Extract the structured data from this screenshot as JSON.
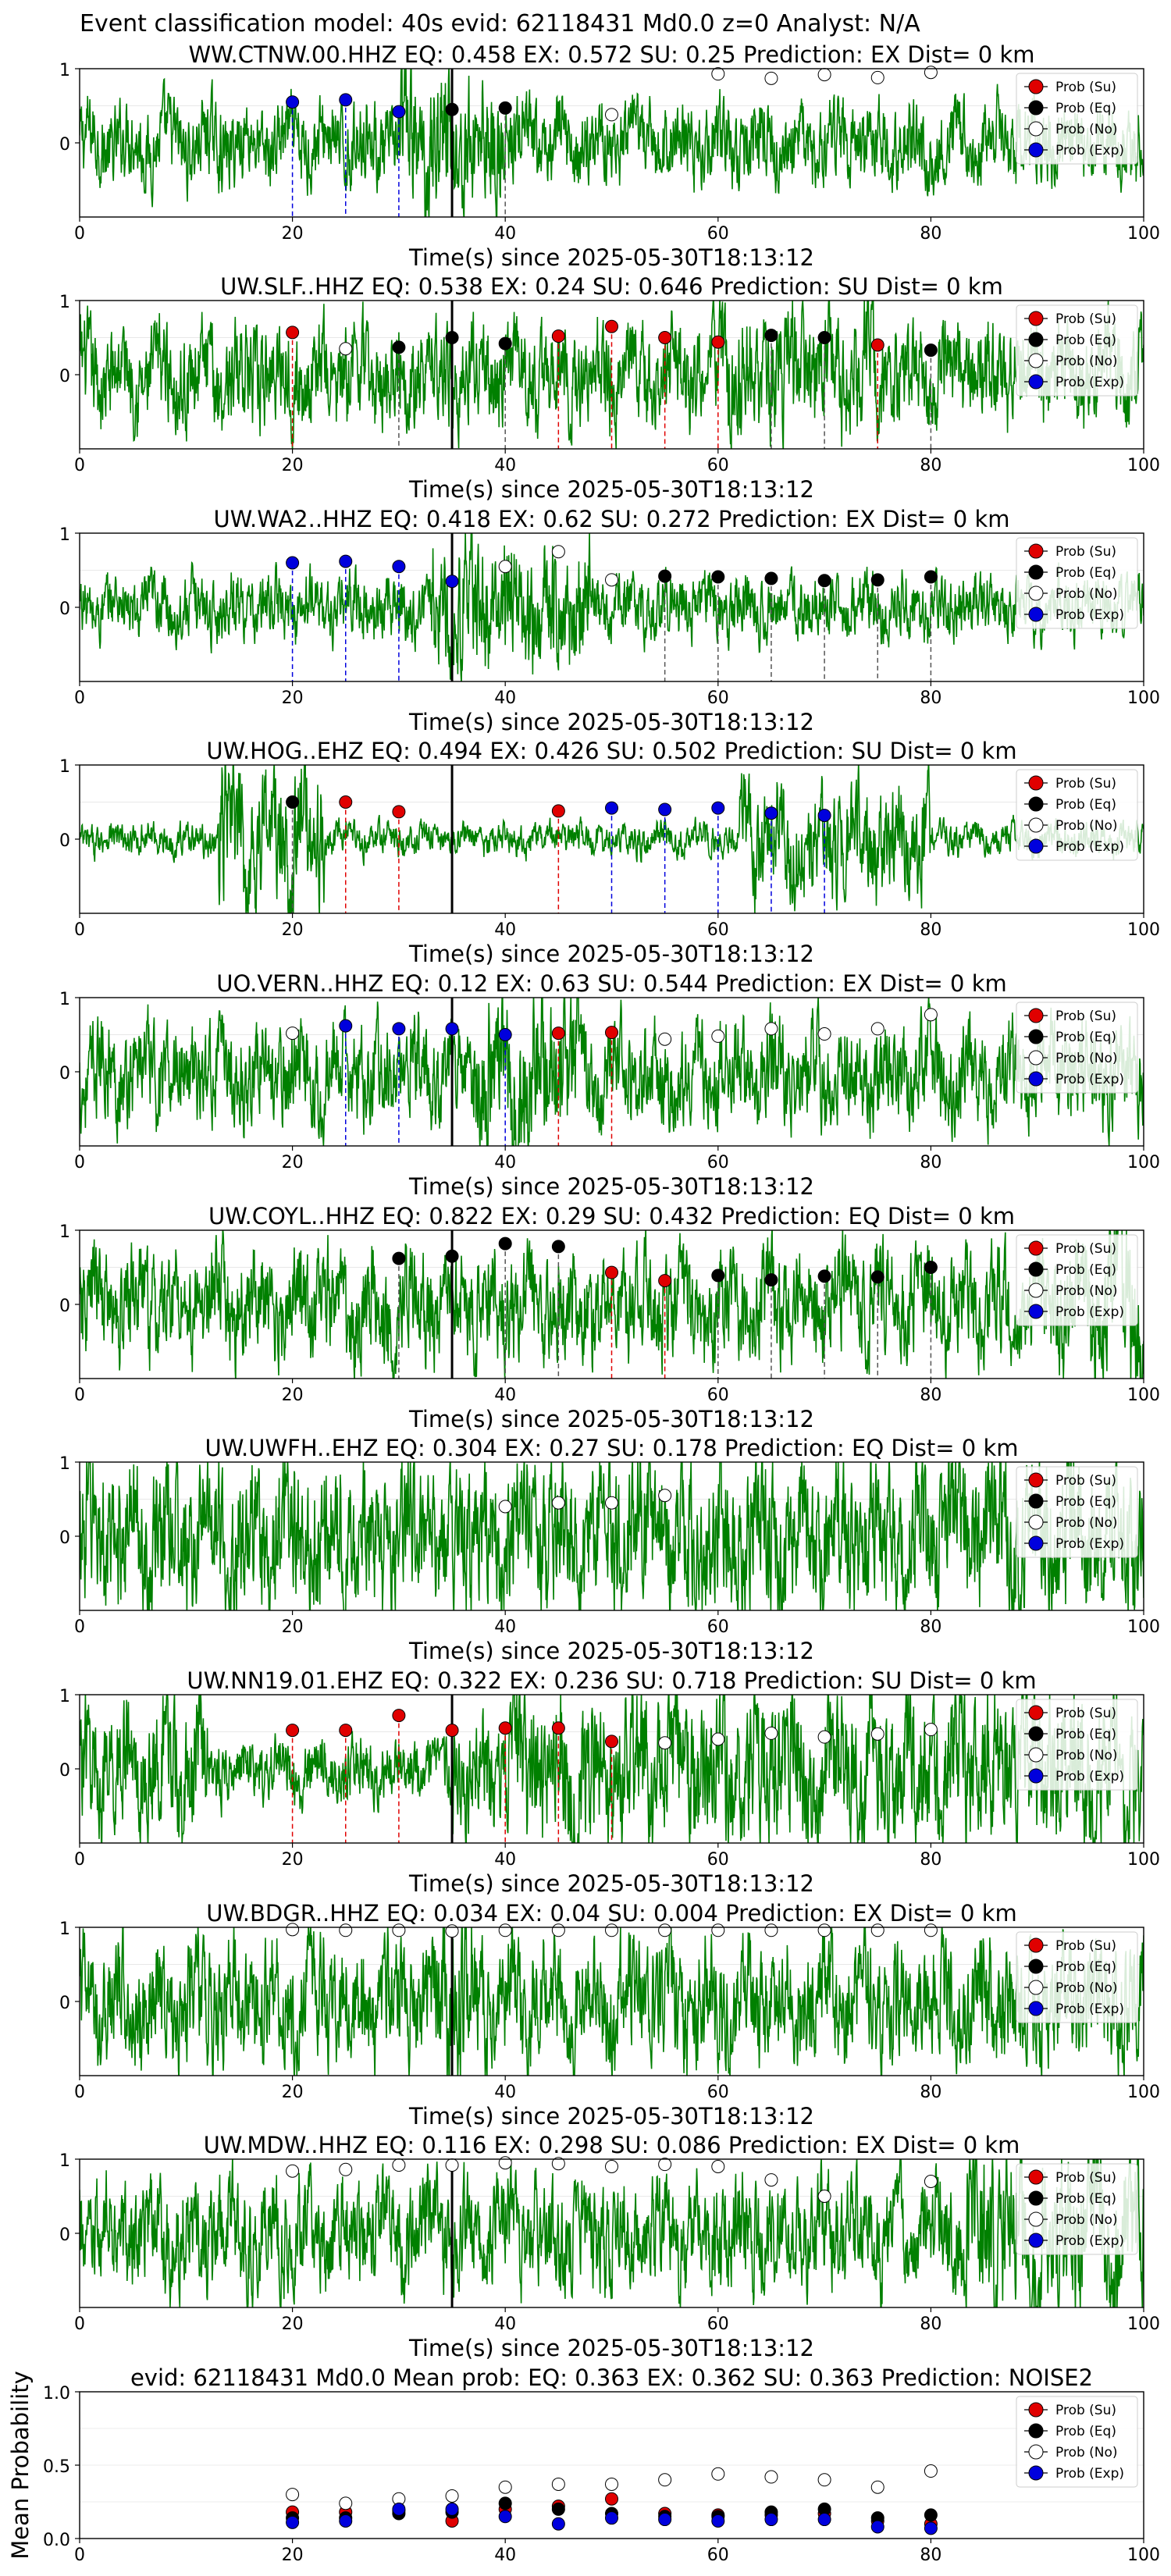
{
  "suptitle": "Event classification model: 40s evid: 62118431 Md0.0 z=0 Analyst: N/A",
  "colors": {
    "waveform": "#008000",
    "su": "#e00000",
    "eq": "#000000",
    "no": "#ffffff",
    "exp": "#0000dd",
    "vline_origin": "#000000"
  },
  "legend": [
    "Prob (Su)",
    "Prob (Eq)",
    "Prob (No)",
    "Prob (Exp)"
  ],
  "chart_data": [
    {
      "type": "line",
      "station": "WW.CTNW.00.HHZ",
      "title": "WW.CTNW.00.HHZ   EQ: 0.458  EX: 0.572  SU: 0.25   Prediction: EX    Dist= 0 km",
      "xlabel": "Time(s) since 2025-05-30T18:13:12",
      "xlim": [
        0,
        100
      ],
      "ylim": [
        -1,
        1
      ],
      "xticks": [
        "0",
        "20",
        "40",
        "60",
        "80",
        "100"
      ],
      "yticks": [
        "1",
        "0"
      ],
      "origin_line": 35,
      "points": [
        {
          "x": 20,
          "y": 0.55,
          "class": "exp"
        },
        {
          "x": 25,
          "y": 0.58,
          "class": "exp"
        },
        {
          "x": 30,
          "y": 0.42,
          "class": "exp"
        },
        {
          "x": 35,
          "y": 0.45,
          "class": "eq"
        },
        {
          "x": 40,
          "y": 0.47,
          "class": "eq"
        },
        {
          "x": 50,
          "y": 0.38,
          "class": "no"
        },
        {
          "x": 60,
          "y": 0.93,
          "class": "no"
        },
        {
          "x": 65,
          "y": 0.87,
          "class": "no"
        },
        {
          "x": 70,
          "y": 0.92,
          "class": "no"
        },
        {
          "x": 75,
          "y": 0.88,
          "class": "no"
        },
        {
          "x": 80,
          "y": 0.95,
          "class": "no"
        }
      ]
    },
    {
      "type": "line",
      "station": "UW.SLF..HHZ",
      "title": "UW.SLF..HHZ   EQ: 0.538  EX: 0.24  SU: 0.646   Prediction: SU    Dist= 0 km",
      "xlabel": "Time(s) since 2025-05-30T18:13:12",
      "xlim": [
        0,
        100
      ],
      "ylim": [
        -1,
        1
      ],
      "xticks": [
        "0",
        "20",
        "40",
        "60",
        "80",
        "100"
      ],
      "yticks": [
        "1",
        "0"
      ],
      "origin_line": 35,
      "points": [
        {
          "x": 20,
          "y": 0.57,
          "class": "su"
        },
        {
          "x": 25,
          "y": 0.35,
          "class": "no"
        },
        {
          "x": 30,
          "y": 0.37,
          "class": "eq"
        },
        {
          "x": 35,
          "y": 0.5,
          "class": "eq"
        },
        {
          "x": 40,
          "y": 0.42,
          "class": "eq"
        },
        {
          "x": 45,
          "y": 0.52,
          "class": "su"
        },
        {
          "x": 50,
          "y": 0.65,
          "class": "su"
        },
        {
          "x": 55,
          "y": 0.5,
          "class": "su"
        },
        {
          "x": 60,
          "y": 0.44,
          "class": "su"
        },
        {
          "x": 65,
          "y": 0.53,
          "class": "eq"
        },
        {
          "x": 70,
          "y": 0.5,
          "class": "eq"
        },
        {
          "x": 75,
          "y": 0.4,
          "class": "su"
        },
        {
          "x": 80,
          "y": 0.33,
          "class": "eq"
        }
      ]
    },
    {
      "type": "line",
      "station": "UW.WA2..HHZ",
      "title": "UW.WA2..HHZ   EQ: 0.418  EX: 0.62  SU: 0.272   Prediction: EX    Dist= 0 km",
      "xlabel": "Time(s) since 2025-05-30T18:13:12",
      "xlim": [
        0,
        100
      ],
      "ylim": [
        -1,
        1
      ],
      "xticks": [
        "0",
        "20",
        "40",
        "60",
        "80",
        "100"
      ],
      "yticks": [
        "1",
        "0"
      ],
      "origin_line": 35,
      "points": [
        {
          "x": 20,
          "y": 0.6,
          "class": "exp"
        },
        {
          "x": 25,
          "y": 0.62,
          "class": "exp"
        },
        {
          "x": 30,
          "y": 0.55,
          "class": "exp"
        },
        {
          "x": 35,
          "y": 0.35,
          "class": "exp"
        },
        {
          "x": 40,
          "y": 0.55,
          "class": "no"
        },
        {
          "x": 45,
          "y": 0.75,
          "class": "no"
        },
        {
          "x": 50,
          "y": 0.37,
          "class": "no"
        },
        {
          "x": 55,
          "y": 0.42,
          "class": "eq"
        },
        {
          "x": 60,
          "y": 0.41,
          "class": "eq"
        },
        {
          "x": 65,
          "y": 0.39,
          "class": "eq"
        },
        {
          "x": 70,
          "y": 0.36,
          "class": "eq"
        },
        {
          "x": 75,
          "y": 0.37,
          "class": "eq"
        },
        {
          "x": 80,
          "y": 0.41,
          "class": "eq"
        }
      ]
    },
    {
      "type": "line",
      "station": "UW.HOG..EHZ",
      "title": "UW.HOG..EHZ   EQ: 0.494  EX: 0.426  SU: 0.502   Prediction: SU    Dist= 0 km",
      "xlabel": "Time(s) since 2025-05-30T18:13:12",
      "xlim": [
        0,
        100
      ],
      "ylim": [
        -1,
        1
      ],
      "xticks": [
        "0",
        "20",
        "40",
        "60",
        "80",
        "100"
      ],
      "yticks": [
        "1",
        "0"
      ],
      "origin_line": 35,
      "points": [
        {
          "x": 20,
          "y": 0.5,
          "class": "eq"
        },
        {
          "x": 25,
          "y": 0.5,
          "class": "su"
        },
        {
          "x": 30,
          "y": 0.37,
          "class": "su"
        },
        {
          "x": 45,
          "y": 0.38,
          "class": "su"
        },
        {
          "x": 50,
          "y": 0.42,
          "class": "exp"
        },
        {
          "x": 55,
          "y": 0.4,
          "class": "exp"
        },
        {
          "x": 60,
          "y": 0.42,
          "class": "exp"
        },
        {
          "x": 65,
          "y": 0.35,
          "class": "exp"
        },
        {
          "x": 70,
          "y": 0.32,
          "class": "exp"
        }
      ]
    },
    {
      "type": "line",
      "station": "UO.VERN..HHZ",
      "title": "UO.VERN..HHZ   EQ: 0.12  EX: 0.63  SU: 0.544   Prediction: EX    Dist= 0 km",
      "xlabel": "Time(s) since 2025-05-30T18:13:12",
      "xlim": [
        0,
        100
      ],
      "ylim": [
        -1,
        1
      ],
      "xticks": [
        "0",
        "20",
        "40",
        "60",
        "80",
        "100"
      ],
      "yticks": [
        "1",
        "0"
      ],
      "origin_line": 35,
      "points": [
        {
          "x": 20,
          "y": 0.52,
          "class": "no"
        },
        {
          "x": 25,
          "y": 0.62,
          "class": "exp"
        },
        {
          "x": 30,
          "y": 0.58,
          "class": "exp"
        },
        {
          "x": 35,
          "y": 0.58,
          "class": "exp"
        },
        {
          "x": 40,
          "y": 0.5,
          "class": "exp"
        },
        {
          "x": 45,
          "y": 0.52,
          "class": "su"
        },
        {
          "x": 50,
          "y": 0.53,
          "class": "su"
        },
        {
          "x": 55,
          "y": 0.44,
          "class": "no"
        },
        {
          "x": 60,
          "y": 0.48,
          "class": "no"
        },
        {
          "x": 65,
          "y": 0.58,
          "class": "no"
        },
        {
          "x": 70,
          "y": 0.51,
          "class": "no"
        },
        {
          "x": 75,
          "y": 0.58,
          "class": "no"
        },
        {
          "x": 80,
          "y": 0.77,
          "class": "no"
        }
      ]
    },
    {
      "type": "line",
      "station": "UW.COYL..HHZ",
      "title": "UW.COYL..HHZ   EQ: 0.822  EX: 0.29  SU: 0.432   Prediction: EQ    Dist= 0 km",
      "xlabel": "Time(s) since 2025-05-30T18:13:12",
      "xlim": [
        0,
        100
      ],
      "ylim": [
        -1,
        1
      ],
      "xticks": [
        "0",
        "20",
        "40",
        "60",
        "80",
        "100"
      ],
      "yticks": [
        "1",
        "0"
      ],
      "origin_line": 35,
      "points": [
        {
          "x": 30,
          "y": 0.62,
          "class": "eq"
        },
        {
          "x": 35,
          "y": 0.65,
          "class": "eq"
        },
        {
          "x": 40,
          "y": 0.82,
          "class": "eq"
        },
        {
          "x": 45,
          "y": 0.78,
          "class": "eq"
        },
        {
          "x": 50,
          "y": 0.43,
          "class": "su"
        },
        {
          "x": 55,
          "y": 0.32,
          "class": "su"
        },
        {
          "x": 60,
          "y": 0.39,
          "class": "eq"
        },
        {
          "x": 65,
          "y": 0.33,
          "class": "eq"
        },
        {
          "x": 70,
          "y": 0.38,
          "class": "eq"
        },
        {
          "x": 75,
          "y": 0.37,
          "class": "eq"
        },
        {
          "x": 80,
          "y": 0.5,
          "class": "eq"
        }
      ]
    },
    {
      "type": "line",
      "station": "UW.UWFH..EHZ",
      "title": "UW.UWFH..EHZ   EQ: 0.304  EX: 0.27  SU: 0.178   Prediction: EQ    Dist= 0 km",
      "xlabel": "Time(s) since 2025-05-30T18:13:12",
      "xlim": [
        0,
        100
      ],
      "ylim": [
        -1,
        1
      ],
      "xticks": [
        "0",
        "20",
        "40",
        "60",
        "80",
        "100"
      ],
      "yticks": [
        "1",
        "0"
      ],
      "origin_line": null,
      "points": [
        {
          "x": 40,
          "y": 0.4,
          "class": "no"
        },
        {
          "x": 45,
          "y": 0.45,
          "class": "no"
        },
        {
          "x": 50,
          "y": 0.45,
          "class": "no"
        },
        {
          "x": 55,
          "y": 0.55,
          "class": "no"
        }
      ]
    },
    {
      "type": "line",
      "station": "UW.NN19.01.EHZ",
      "title": "UW.NN19.01.EHZ   EQ: 0.322  EX: 0.236  SU: 0.718   Prediction: SU    Dist= 0 km",
      "xlabel": "Time(s) since 2025-05-30T18:13:12",
      "xlim": [
        0,
        100
      ],
      "ylim": [
        -1,
        1
      ],
      "xticks": [
        "0",
        "20",
        "40",
        "60",
        "80",
        "100"
      ],
      "yticks": [
        "1",
        "0"
      ],
      "origin_line": 35,
      "points": [
        {
          "x": 20,
          "y": 0.52,
          "class": "su"
        },
        {
          "x": 25,
          "y": 0.52,
          "class": "su"
        },
        {
          "x": 30,
          "y": 0.72,
          "class": "su"
        },
        {
          "x": 35,
          "y": 0.52,
          "class": "su"
        },
        {
          "x": 40,
          "y": 0.55,
          "class": "su"
        },
        {
          "x": 45,
          "y": 0.55,
          "class": "su"
        },
        {
          "x": 50,
          "y": 0.37,
          "class": "su"
        },
        {
          "x": 55,
          "y": 0.35,
          "class": "no"
        },
        {
          "x": 60,
          "y": 0.4,
          "class": "no"
        },
        {
          "x": 65,
          "y": 0.48,
          "class": "no"
        },
        {
          "x": 70,
          "y": 0.43,
          "class": "no"
        },
        {
          "x": 75,
          "y": 0.47,
          "class": "no"
        },
        {
          "x": 80,
          "y": 0.53,
          "class": "no"
        }
      ]
    },
    {
      "type": "line",
      "station": "UW.BDGR..HHZ",
      "title": "UW.BDGR..HHZ   EQ: 0.034  EX: 0.04  SU: 0.004   Prediction: EX    Dist= 0 km",
      "xlabel": "Time(s) since 2025-05-30T18:13:12",
      "xlim": [
        0,
        100
      ],
      "ylim": [
        -1,
        1
      ],
      "xticks": [
        "0",
        "20",
        "40",
        "60",
        "80",
        "100"
      ],
      "yticks": [
        "1",
        "0"
      ],
      "origin_line": 35,
      "points": [
        {
          "x": 20,
          "y": 0.97,
          "class": "no"
        },
        {
          "x": 25,
          "y": 0.96,
          "class": "no"
        },
        {
          "x": 30,
          "y": 0.96,
          "class": "no"
        },
        {
          "x": 35,
          "y": 0.95,
          "class": "no"
        },
        {
          "x": 40,
          "y": 0.96,
          "class": "no"
        },
        {
          "x": 45,
          "y": 0.96,
          "class": "no"
        },
        {
          "x": 50,
          "y": 0.96,
          "class": "no"
        },
        {
          "x": 55,
          "y": 0.96,
          "class": "no"
        },
        {
          "x": 60,
          "y": 0.96,
          "class": "no"
        },
        {
          "x": 65,
          "y": 0.96,
          "class": "no"
        },
        {
          "x": 70,
          "y": 0.96,
          "class": "no"
        },
        {
          "x": 75,
          "y": 0.96,
          "class": "no"
        },
        {
          "x": 80,
          "y": 0.96,
          "class": "no"
        }
      ]
    },
    {
      "type": "line",
      "station": "UW.MDW..HHZ",
      "title": "UW.MDW..HHZ   EQ: 0.116  EX: 0.298  SU: 0.086   Prediction: EX    Dist= 0 km",
      "xlabel": "Time(s) since 2025-05-30T18:13:12",
      "xlim": [
        0,
        100
      ],
      "ylim": [
        -1,
        1
      ],
      "xticks": [
        "0",
        "20",
        "40",
        "60",
        "80",
        "100"
      ],
      "yticks": [
        "1",
        "0"
      ],
      "origin_line": 35,
      "points": [
        {
          "x": 20,
          "y": 0.84,
          "class": "no"
        },
        {
          "x": 25,
          "y": 0.86,
          "class": "no"
        },
        {
          "x": 30,
          "y": 0.92,
          "class": "no"
        },
        {
          "x": 35,
          "y": 0.92,
          "class": "no"
        },
        {
          "x": 40,
          "y": 0.95,
          "class": "no"
        },
        {
          "x": 45,
          "y": 0.94,
          "class": "no"
        },
        {
          "x": 50,
          "y": 0.9,
          "class": "no"
        },
        {
          "x": 55,
          "y": 0.93,
          "class": "no"
        },
        {
          "x": 60,
          "y": 0.9,
          "class": "no"
        },
        {
          "x": 65,
          "y": 0.72,
          "class": "no"
        },
        {
          "x": 70,
          "y": 0.5,
          "class": "no"
        },
        {
          "x": 80,
          "y": 0.7,
          "class": "no"
        }
      ]
    },
    {
      "type": "scatter",
      "station": "mean",
      "title": "evid: 62118431  Md0.0   Mean prob:   EQ: 0.363  EX: 0.362  SU: 0.363   Prediction: NOISE2",
      "xlabel": "",
      "ylabel": "Mean Probability",
      "xlim": [
        0,
        100
      ],
      "ylim": [
        0,
        1
      ],
      "xticks": [
        "0",
        "20",
        "40",
        "60",
        "80",
        "100"
      ],
      "yticks": [
        "1.0",
        "0.5",
        "0.0"
      ],
      "origin_line": null,
      "series": [
        {
          "name": "Prob (Su)",
          "class": "su",
          "x": [
            20,
            25,
            30,
            35,
            40,
            45,
            50,
            55,
            60,
            65,
            70,
            75,
            80
          ],
          "y": [
            0.18,
            0.18,
            0.19,
            0.12,
            0.2,
            0.22,
            0.27,
            0.17,
            0.16,
            0.16,
            0.17,
            0.12,
            0.1
          ]
        },
        {
          "name": "Prob (Eq)",
          "class": "eq",
          "x": [
            20,
            25,
            30,
            35,
            40,
            45,
            50,
            55,
            60,
            65,
            70,
            75,
            80
          ],
          "y": [
            0.14,
            0.14,
            0.17,
            0.18,
            0.24,
            0.2,
            0.17,
            0.15,
            0.15,
            0.18,
            0.2,
            0.14,
            0.16
          ]
        },
        {
          "name": "Prob (No)",
          "class": "no",
          "x": [
            20,
            25,
            30,
            35,
            40,
            45,
            50,
            55,
            60,
            65,
            70,
            75,
            80
          ],
          "y": [
            0.3,
            0.24,
            0.27,
            0.29,
            0.35,
            0.37,
            0.37,
            0.4,
            0.44,
            0.42,
            0.4,
            0.35,
            0.46
          ]
        },
        {
          "name": "Prob (Exp)",
          "class": "exp",
          "x": [
            20,
            25,
            30,
            35,
            40,
            45,
            50,
            55,
            60,
            65,
            70,
            75,
            80
          ],
          "y": [
            0.11,
            0.12,
            0.2,
            0.2,
            0.15,
            0.1,
            0.14,
            0.13,
            0.12,
            0.13,
            0.13,
            0.08,
            0.07
          ]
        }
      ]
    }
  ]
}
